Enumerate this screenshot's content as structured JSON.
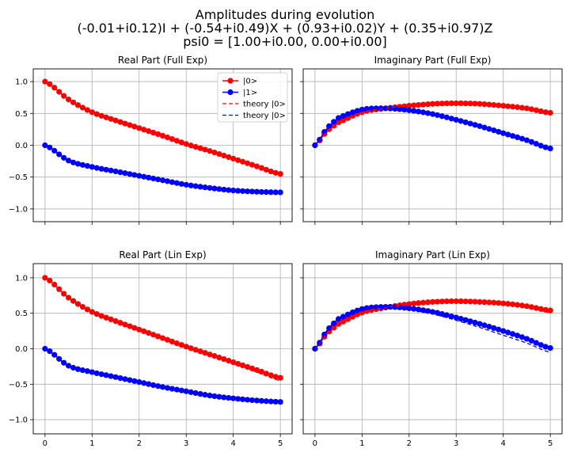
{
  "figure": {
    "title_lines": [
      "Amplitudes during evolution",
      "(-0.01+i0.12)I + (-0.54+i0.49)X + (0.93+i0.02)Y + (0.35+i0.97)Z",
      "psi0 = [1.00+i0.00, 0.00+i0.00]"
    ]
  },
  "colors": {
    "state0": "#ff0000",
    "state1": "#0000ff",
    "grid": "#b0b0b0",
    "axes": "#000000"
  },
  "chart_data": [
    {
      "type": "line",
      "title": "Real Part (Full Exp)",
      "xlabel": "",
      "ylabel": "",
      "xlim": [
        -0.25,
        5.25
      ],
      "ylim": [
        -1.2,
        1.2
      ],
      "xticks": [
        0,
        1,
        2,
        3,
        4,
        5
      ],
      "yticks": [
        -1.0,
        -0.5,
        0.0,
        0.5,
        1.0
      ],
      "xticklabels": [
        "0",
        "1",
        "2",
        "3",
        "4",
        "5"
      ],
      "yticklabels": [
        "−1.0",
        "−0.5",
        "0.0",
        "0.5",
        "1.0"
      ],
      "show_xticklabels": false,
      "show_yticklabels": true,
      "grid": true,
      "legend": {
        "placement": "top-right",
        "entries": [
          "|0>",
          "|1>",
          "theory |0>",
          "theory |0>"
        ]
      },
      "series": [
        {
          "name": "|0>",
          "style": "marker-line",
          "color": "red",
          "x": [
            0,
            0.5,
            1,
            1.5,
            2,
            2.5,
            3,
            3.5,
            4,
            4.5,
            5
          ],
          "y": [
            1.0,
            0.72,
            0.52,
            0.39,
            0.27,
            0.15,
            0.02,
            -0.09,
            -0.21,
            -0.33,
            -0.45
          ]
        },
        {
          "name": "|1>",
          "style": "marker-line",
          "color": "blue",
          "x": [
            0,
            0.5,
            1,
            1.5,
            2,
            2.5,
            3,
            3.5,
            4,
            4.5,
            5
          ],
          "y": [
            0.0,
            -0.24,
            -0.34,
            -0.41,
            -0.48,
            -0.55,
            -0.62,
            -0.67,
            -0.71,
            -0.73,
            -0.74
          ]
        },
        {
          "name": "theory |0>",
          "style": "dashed",
          "color": "red",
          "x": [
            0,
            0.5,
            1,
            1.5,
            2,
            2.5,
            3,
            3.5,
            4,
            4.5,
            5
          ],
          "y": [
            1.0,
            0.72,
            0.52,
            0.39,
            0.27,
            0.15,
            0.02,
            -0.09,
            -0.21,
            -0.33,
            -0.45
          ]
        },
        {
          "name": "theory |0>",
          "style": "dashed",
          "color": "blue",
          "x": [
            0,
            0.5,
            1,
            1.5,
            2,
            2.5,
            3,
            3.5,
            4,
            4.5,
            5
          ],
          "y": [
            0.0,
            -0.24,
            -0.34,
            -0.41,
            -0.48,
            -0.55,
            -0.62,
            -0.67,
            -0.71,
            -0.73,
            -0.74
          ]
        }
      ]
    },
    {
      "type": "line",
      "title": "Imaginary Part (Full Exp)",
      "xlabel": "",
      "ylabel": "",
      "xlim": [
        -0.25,
        5.25
      ],
      "ylim": [
        -1.2,
        1.2
      ],
      "xticks": [
        0,
        1,
        2,
        3,
        4,
        5
      ],
      "yticks": [
        -1.0,
        -0.5,
        0.0,
        0.5,
        1.0
      ],
      "xticklabels": [
        "0",
        "1",
        "2",
        "3",
        "4",
        "5"
      ],
      "yticklabels": [
        "−1.0",
        "−0.5",
        "0.0",
        "0.5",
        "1.0"
      ],
      "show_xticklabels": false,
      "show_yticklabels": false,
      "grid": true,
      "series": [
        {
          "name": "|0>",
          "style": "marker-line",
          "color": "red",
          "x": [
            0,
            0.25,
            0.5,
            1,
            1.5,
            2,
            2.5,
            3,
            3.5,
            4,
            4.5,
            5
          ],
          "y": [
            0.0,
            0.22,
            0.36,
            0.52,
            0.58,
            0.62,
            0.65,
            0.66,
            0.65,
            0.62,
            0.58,
            0.51
          ]
        },
        {
          "name": "|1>",
          "style": "marker-line",
          "color": "blue",
          "x": [
            0,
            0.25,
            0.5,
            1,
            1.5,
            2,
            2.5,
            3,
            3.5,
            4,
            4.5,
            5
          ],
          "y": [
            0.0,
            0.26,
            0.43,
            0.56,
            0.58,
            0.55,
            0.49,
            0.4,
            0.3,
            0.19,
            0.08,
            -0.05
          ]
        },
        {
          "name": "theory |0>",
          "style": "dashed",
          "color": "red",
          "x": [
            0,
            0.25,
            0.5,
            1,
            1.5,
            2,
            2.5,
            3,
            3.5,
            4,
            4.5,
            5
          ],
          "y": [
            0.0,
            0.22,
            0.36,
            0.52,
            0.58,
            0.62,
            0.65,
            0.66,
            0.65,
            0.62,
            0.58,
            0.51
          ]
        },
        {
          "name": "theory |0>",
          "style": "dashed",
          "color": "blue",
          "x": [
            0,
            0.25,
            0.5,
            1,
            1.5,
            2,
            2.5,
            3,
            3.5,
            4,
            4.5,
            5
          ],
          "y": [
            0.0,
            0.26,
            0.43,
            0.56,
            0.58,
            0.55,
            0.49,
            0.4,
            0.3,
            0.19,
            0.08,
            -0.05
          ]
        }
      ]
    },
    {
      "type": "line",
      "title": "Real Part (Lin Exp)",
      "xlabel": "",
      "ylabel": "",
      "xlim": [
        -0.25,
        5.25
      ],
      "ylim": [
        -1.2,
        1.2
      ],
      "xticks": [
        0,
        1,
        2,
        3,
        4,
        5
      ],
      "yticks": [
        -1.0,
        -0.5,
        0.0,
        0.5,
        1.0
      ],
      "xticklabels": [
        "0",
        "1",
        "2",
        "3",
        "4",
        "5"
      ],
      "yticklabels": [
        "−1.0",
        "−0.5",
        "0.0",
        "0.5",
        "1.0"
      ],
      "show_xticklabels": true,
      "show_yticklabels": true,
      "grid": true,
      "series": [
        {
          "name": "|0>",
          "style": "marker-line",
          "color": "red",
          "x": [
            0,
            0.5,
            1,
            1.5,
            2,
            2.5,
            3,
            3.5,
            4,
            4.5,
            5
          ],
          "y": [
            1.0,
            0.72,
            0.52,
            0.39,
            0.27,
            0.15,
            0.03,
            -0.08,
            -0.19,
            -0.3,
            -0.41
          ]
        },
        {
          "name": "|1>",
          "style": "marker-line",
          "color": "blue",
          "x": [
            0,
            0.5,
            1,
            1.5,
            2,
            2.5,
            3,
            3.5,
            4,
            4.5,
            5
          ],
          "y": [
            0.0,
            -0.24,
            -0.33,
            -0.4,
            -0.47,
            -0.54,
            -0.6,
            -0.66,
            -0.7,
            -0.73,
            -0.75
          ]
        },
        {
          "name": "theory |0>",
          "style": "dashed",
          "color": "red",
          "x": [
            0,
            0.5,
            1,
            1.5,
            2,
            2.5,
            3,
            3.5,
            4,
            4.5,
            5
          ],
          "y": [
            1.0,
            0.72,
            0.52,
            0.39,
            0.27,
            0.15,
            0.02,
            -0.09,
            -0.21,
            -0.33,
            -0.45
          ]
        },
        {
          "name": "theory |0>",
          "style": "dashed",
          "color": "blue",
          "x": [
            0,
            0.5,
            1,
            1.5,
            2,
            2.5,
            3,
            3.5,
            4,
            4.5,
            5
          ],
          "y": [
            0.0,
            -0.24,
            -0.34,
            -0.41,
            -0.48,
            -0.55,
            -0.62,
            -0.67,
            -0.71,
            -0.73,
            -0.74
          ]
        }
      ]
    },
    {
      "type": "line",
      "title": "Imaginary Part (Lin Exp)",
      "xlabel": "",
      "ylabel": "",
      "xlim": [
        -0.25,
        5.25
      ],
      "ylim": [
        -1.2,
        1.2
      ],
      "xticks": [
        0,
        1,
        2,
        3,
        4,
        5
      ],
      "yticks": [
        -1.0,
        -0.5,
        0.0,
        0.5,
        1.0
      ],
      "xticklabels": [
        "0",
        "1",
        "2",
        "3",
        "4",
        "5"
      ],
      "yticklabels": [
        "−1.0",
        "−0.5",
        "0.0",
        "0.5",
        "1.0"
      ],
      "show_xticklabels": true,
      "show_yticklabels": false,
      "grid": true,
      "series": [
        {
          "name": "|0>",
          "style": "marker-line",
          "color": "red",
          "x": [
            0,
            0.25,
            0.5,
            1,
            1.5,
            2,
            2.5,
            3,
            3.5,
            4,
            4.5,
            5
          ],
          "y": [
            0.0,
            0.21,
            0.35,
            0.51,
            0.58,
            0.63,
            0.66,
            0.67,
            0.66,
            0.64,
            0.6,
            0.54
          ]
        },
        {
          "name": "|1>",
          "style": "marker-line",
          "color": "blue",
          "x": [
            0,
            0.25,
            0.5,
            1,
            1.5,
            2,
            2.5,
            3,
            3.5,
            4,
            4.5,
            5
          ],
          "y": [
            0.0,
            0.25,
            0.42,
            0.56,
            0.59,
            0.57,
            0.52,
            0.44,
            0.35,
            0.25,
            0.14,
            0.01
          ]
        },
        {
          "name": "theory |0>",
          "style": "dashed",
          "color": "red",
          "x": [
            0,
            0.25,
            0.5,
            1,
            1.5,
            2,
            2.5,
            3,
            3.5,
            4,
            4.5,
            5
          ],
          "y": [
            0.0,
            0.22,
            0.36,
            0.52,
            0.58,
            0.62,
            0.65,
            0.66,
            0.65,
            0.62,
            0.58,
            0.51
          ]
        },
        {
          "name": "theory |0>",
          "style": "dashed",
          "color": "blue",
          "x": [
            0,
            0.25,
            0.5,
            1,
            1.5,
            2,
            2.5,
            3,
            3.5,
            4,
            4.5,
            5
          ],
          "y": [
            0.0,
            0.26,
            0.43,
            0.56,
            0.58,
            0.55,
            0.49,
            0.4,
            0.3,
            0.19,
            0.08,
            -0.05
          ]
        }
      ]
    }
  ]
}
